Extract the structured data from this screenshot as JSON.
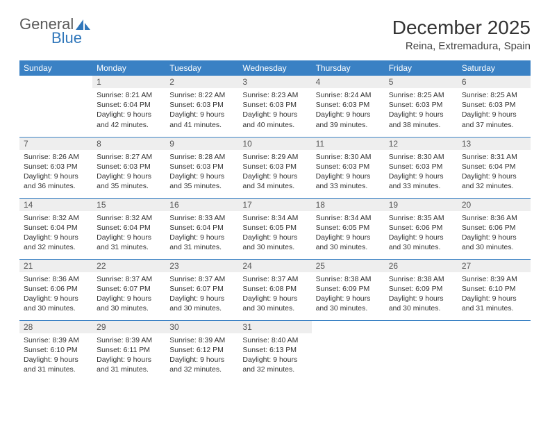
{
  "logo": {
    "text1": "General",
    "text2": "Blue"
  },
  "title": "December 2025",
  "location": "Reina, Extremadura, Spain",
  "colors": {
    "header_bg": "#3a81c4",
    "header_fg": "#ffffff",
    "daynum_bg": "#eeeeee",
    "rule": "#3a81c4",
    "logo_blue": "#2f76ba"
  },
  "weekdays": [
    "Sunday",
    "Monday",
    "Tuesday",
    "Wednesday",
    "Thursday",
    "Friday",
    "Saturday"
  ],
  "weeks": [
    [
      null,
      {
        "n": "1",
        "sr": "8:21 AM",
        "ss": "6:04 PM",
        "dl": "9 hours and 42 minutes."
      },
      {
        "n": "2",
        "sr": "8:22 AM",
        "ss": "6:03 PM",
        "dl": "9 hours and 41 minutes."
      },
      {
        "n": "3",
        "sr": "8:23 AM",
        "ss": "6:03 PM",
        "dl": "9 hours and 40 minutes."
      },
      {
        "n": "4",
        "sr": "8:24 AM",
        "ss": "6:03 PM",
        "dl": "9 hours and 39 minutes."
      },
      {
        "n": "5",
        "sr": "8:25 AM",
        "ss": "6:03 PM",
        "dl": "9 hours and 38 minutes."
      },
      {
        "n": "6",
        "sr": "8:25 AM",
        "ss": "6:03 PM",
        "dl": "9 hours and 37 minutes."
      }
    ],
    [
      {
        "n": "7",
        "sr": "8:26 AM",
        "ss": "6:03 PM",
        "dl": "9 hours and 36 minutes."
      },
      {
        "n": "8",
        "sr": "8:27 AM",
        "ss": "6:03 PM",
        "dl": "9 hours and 35 minutes."
      },
      {
        "n": "9",
        "sr": "8:28 AM",
        "ss": "6:03 PM",
        "dl": "9 hours and 35 minutes."
      },
      {
        "n": "10",
        "sr": "8:29 AM",
        "ss": "6:03 PM",
        "dl": "9 hours and 34 minutes."
      },
      {
        "n": "11",
        "sr": "8:30 AM",
        "ss": "6:03 PM",
        "dl": "9 hours and 33 minutes."
      },
      {
        "n": "12",
        "sr": "8:30 AM",
        "ss": "6:03 PM",
        "dl": "9 hours and 33 minutes."
      },
      {
        "n": "13",
        "sr": "8:31 AM",
        "ss": "6:04 PM",
        "dl": "9 hours and 32 minutes."
      }
    ],
    [
      {
        "n": "14",
        "sr": "8:32 AM",
        "ss": "6:04 PM",
        "dl": "9 hours and 32 minutes."
      },
      {
        "n": "15",
        "sr": "8:32 AM",
        "ss": "6:04 PM",
        "dl": "9 hours and 31 minutes."
      },
      {
        "n": "16",
        "sr": "8:33 AM",
        "ss": "6:04 PM",
        "dl": "9 hours and 31 minutes."
      },
      {
        "n": "17",
        "sr": "8:34 AM",
        "ss": "6:05 PM",
        "dl": "9 hours and 30 minutes."
      },
      {
        "n": "18",
        "sr": "8:34 AM",
        "ss": "6:05 PM",
        "dl": "9 hours and 30 minutes."
      },
      {
        "n": "19",
        "sr": "8:35 AM",
        "ss": "6:06 PM",
        "dl": "9 hours and 30 minutes."
      },
      {
        "n": "20",
        "sr": "8:36 AM",
        "ss": "6:06 PM",
        "dl": "9 hours and 30 minutes."
      }
    ],
    [
      {
        "n": "21",
        "sr": "8:36 AM",
        "ss": "6:06 PM",
        "dl": "9 hours and 30 minutes."
      },
      {
        "n": "22",
        "sr": "8:37 AM",
        "ss": "6:07 PM",
        "dl": "9 hours and 30 minutes."
      },
      {
        "n": "23",
        "sr": "8:37 AM",
        "ss": "6:07 PM",
        "dl": "9 hours and 30 minutes."
      },
      {
        "n": "24",
        "sr": "8:37 AM",
        "ss": "6:08 PM",
        "dl": "9 hours and 30 minutes."
      },
      {
        "n": "25",
        "sr": "8:38 AM",
        "ss": "6:09 PM",
        "dl": "9 hours and 30 minutes."
      },
      {
        "n": "26",
        "sr": "8:38 AM",
        "ss": "6:09 PM",
        "dl": "9 hours and 30 minutes."
      },
      {
        "n": "27",
        "sr": "8:39 AM",
        "ss": "6:10 PM",
        "dl": "9 hours and 31 minutes."
      }
    ],
    [
      {
        "n": "28",
        "sr": "8:39 AM",
        "ss": "6:10 PM",
        "dl": "9 hours and 31 minutes."
      },
      {
        "n": "29",
        "sr": "8:39 AM",
        "ss": "6:11 PM",
        "dl": "9 hours and 31 minutes."
      },
      {
        "n": "30",
        "sr": "8:39 AM",
        "ss": "6:12 PM",
        "dl": "9 hours and 32 minutes."
      },
      {
        "n": "31",
        "sr": "8:40 AM",
        "ss": "6:13 PM",
        "dl": "9 hours and 32 minutes."
      },
      null,
      null,
      null
    ]
  ],
  "labels": {
    "sunrise": "Sunrise:",
    "sunset": "Sunset:",
    "daylight": "Daylight:"
  }
}
